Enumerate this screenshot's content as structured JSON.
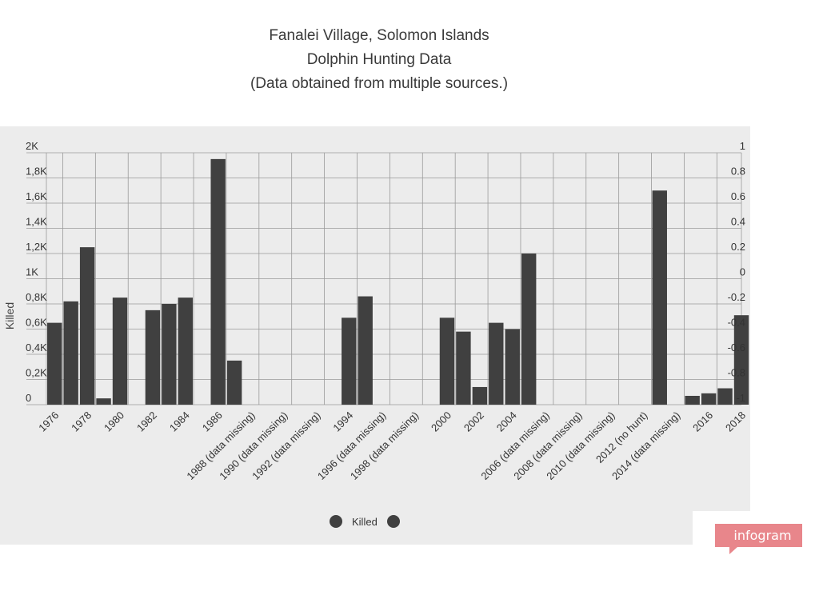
{
  "title": {
    "line1": "Fanalei Village, Solomon Islands",
    "line2": "Dolphin Hunting Data",
    "line3": "(Data obtained from multiple sources.)"
  },
  "chart_data": {
    "type": "bar",
    "title": "Fanalei Village, Solomon Islands Dolphin Hunting Data",
    "ylabel": "Killed",
    "ylim": [
      0,
      2000
    ],
    "y2lim": [
      -1,
      1
    ],
    "grid": true,
    "legend_position": "bottom",
    "yticks": [
      "0",
      "0,2K",
      "0,4K",
      "0,6K",
      "0,8K",
      "1K",
      "1,2K",
      "1,4K",
      "1,6K",
      "1,8K",
      "2K"
    ],
    "y2ticks": [
      "-1",
      "-0.8",
      "-0.6",
      "-0.4",
      "-0.2",
      "0",
      "0.2",
      "0.4",
      "0.6",
      "0.8",
      "1"
    ],
    "xtick_labels": [
      "1976",
      "1978",
      "1980",
      "1982",
      "1984",
      "1986",
      "1988 (data missing)",
      "1990 (data missing)",
      "1992 (data missing)",
      "1994",
      "1996 (data missing)",
      "1998 (data missing)",
      "2000",
      "2002",
      "2004",
      "2006 (data missing)",
      "2008 (data missing)",
      "2010 (data missing)",
      "2012 (no hunt)",
      "2014 (data missing)",
      "2016",
      "2018"
    ],
    "years": [
      1976,
      1977,
      1978,
      1979,
      1980,
      1981,
      1982,
      1983,
      1984,
      1985,
      1986,
      1987,
      1988,
      1989,
      1990,
      1991,
      1992,
      1993,
      1994,
      1995,
      1996,
      1997,
      1998,
      1999,
      2000,
      2001,
      2002,
      2003,
      2004,
      2005,
      2006,
      2007,
      2008,
      2009,
      2010,
      2011,
      2012,
      2013,
      2014,
      2015,
      2016,
      2017,
      2018
    ],
    "series": [
      {
        "name": "Killed",
        "color": "#404040",
        "values": [
          650,
          820,
          1250,
          50,
          850,
          null,
          750,
          800,
          850,
          null,
          1950,
          350,
          null,
          null,
          null,
          null,
          null,
          null,
          690,
          860,
          null,
          null,
          null,
          null,
          690,
          580,
          140,
          650,
          600,
          1200,
          null,
          null,
          null,
          null,
          null,
          null,
          null,
          1700,
          null,
          70,
          90,
          130,
          710
        ]
      }
    ]
  },
  "legend": {
    "label": "Killed",
    "color": "#404040"
  },
  "branding": {
    "label": "infogram",
    "color": "#e8868b"
  }
}
